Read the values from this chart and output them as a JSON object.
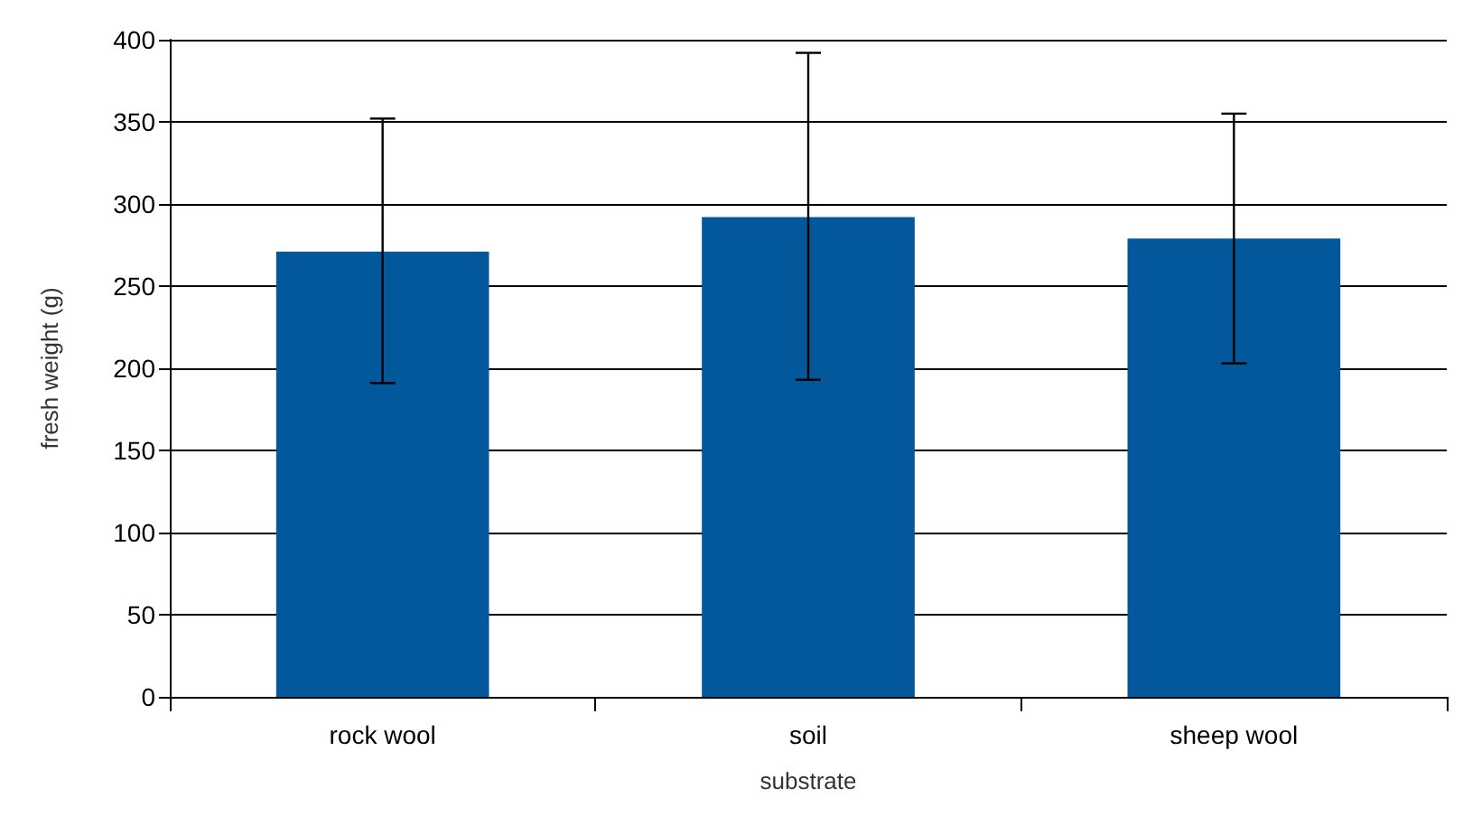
{
  "chart_data": {
    "type": "bar",
    "xlabel": "substrate",
    "ylabel": "fresh weight (g)",
    "categories": [
      "rock wool",
      "soil",
      "sheep wool"
    ],
    "values": [
      271,
      292,
      279
    ],
    "color": "#02589a",
    "errors": [
      [
        191,
        352
      ],
      [
        193,
        392
      ],
      [
        203,
        355
      ]
    ],
    "ylim": [
      0,
      400
    ],
    "yticks": [
      0,
      50,
      100,
      150,
      200,
      250,
      300,
      350,
      400
    ],
    "grid": "y"
  }
}
